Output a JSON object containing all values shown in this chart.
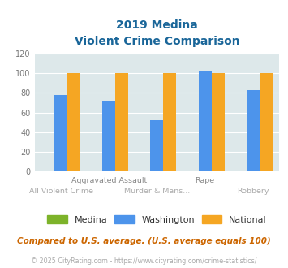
{
  "title_line1": "2019 Medina",
  "title_line2": "Violent Crime Comparison",
  "categories": [
    "All Violent Crime",
    "Aggravated Assault",
    "Murder & Mans...",
    "Rape",
    "Robbery"
  ],
  "x_label_row1": [
    "",
    "Aggravated Assault",
    "",
    "Rape",
    ""
  ],
  "x_label_row2": [
    "All Violent Crime",
    "",
    "Murder & Mans...",
    "",
    "Robbery"
  ],
  "series": {
    "Medina": [
      0,
      0,
      0,
      0,
      0
    ],
    "Washington": [
      78,
      72,
      52,
      103,
      83
    ],
    "National": [
      100,
      100,
      100,
      100,
      100
    ]
  },
  "colors": {
    "Medina": "#7db32a",
    "Washington": "#4d94eb",
    "National": "#f5a623"
  },
  "ylim": [
    0,
    120
  ],
  "yticks": [
    0,
    20,
    40,
    60,
    80,
    100,
    120
  ],
  "plot_bg": "#dde8ea",
  "fig_bg": "#ffffff",
  "title_color": "#1a6699",
  "footnote1": "Compared to U.S. average. (U.S. average equals 100)",
  "footnote2": "© 2025 CityRating.com - https://www.cityrating.com/crime-statistics/",
  "footnote1_color": "#cc6600",
  "footnote2_color": "#aaaaaa",
  "bar_width": 0.27
}
